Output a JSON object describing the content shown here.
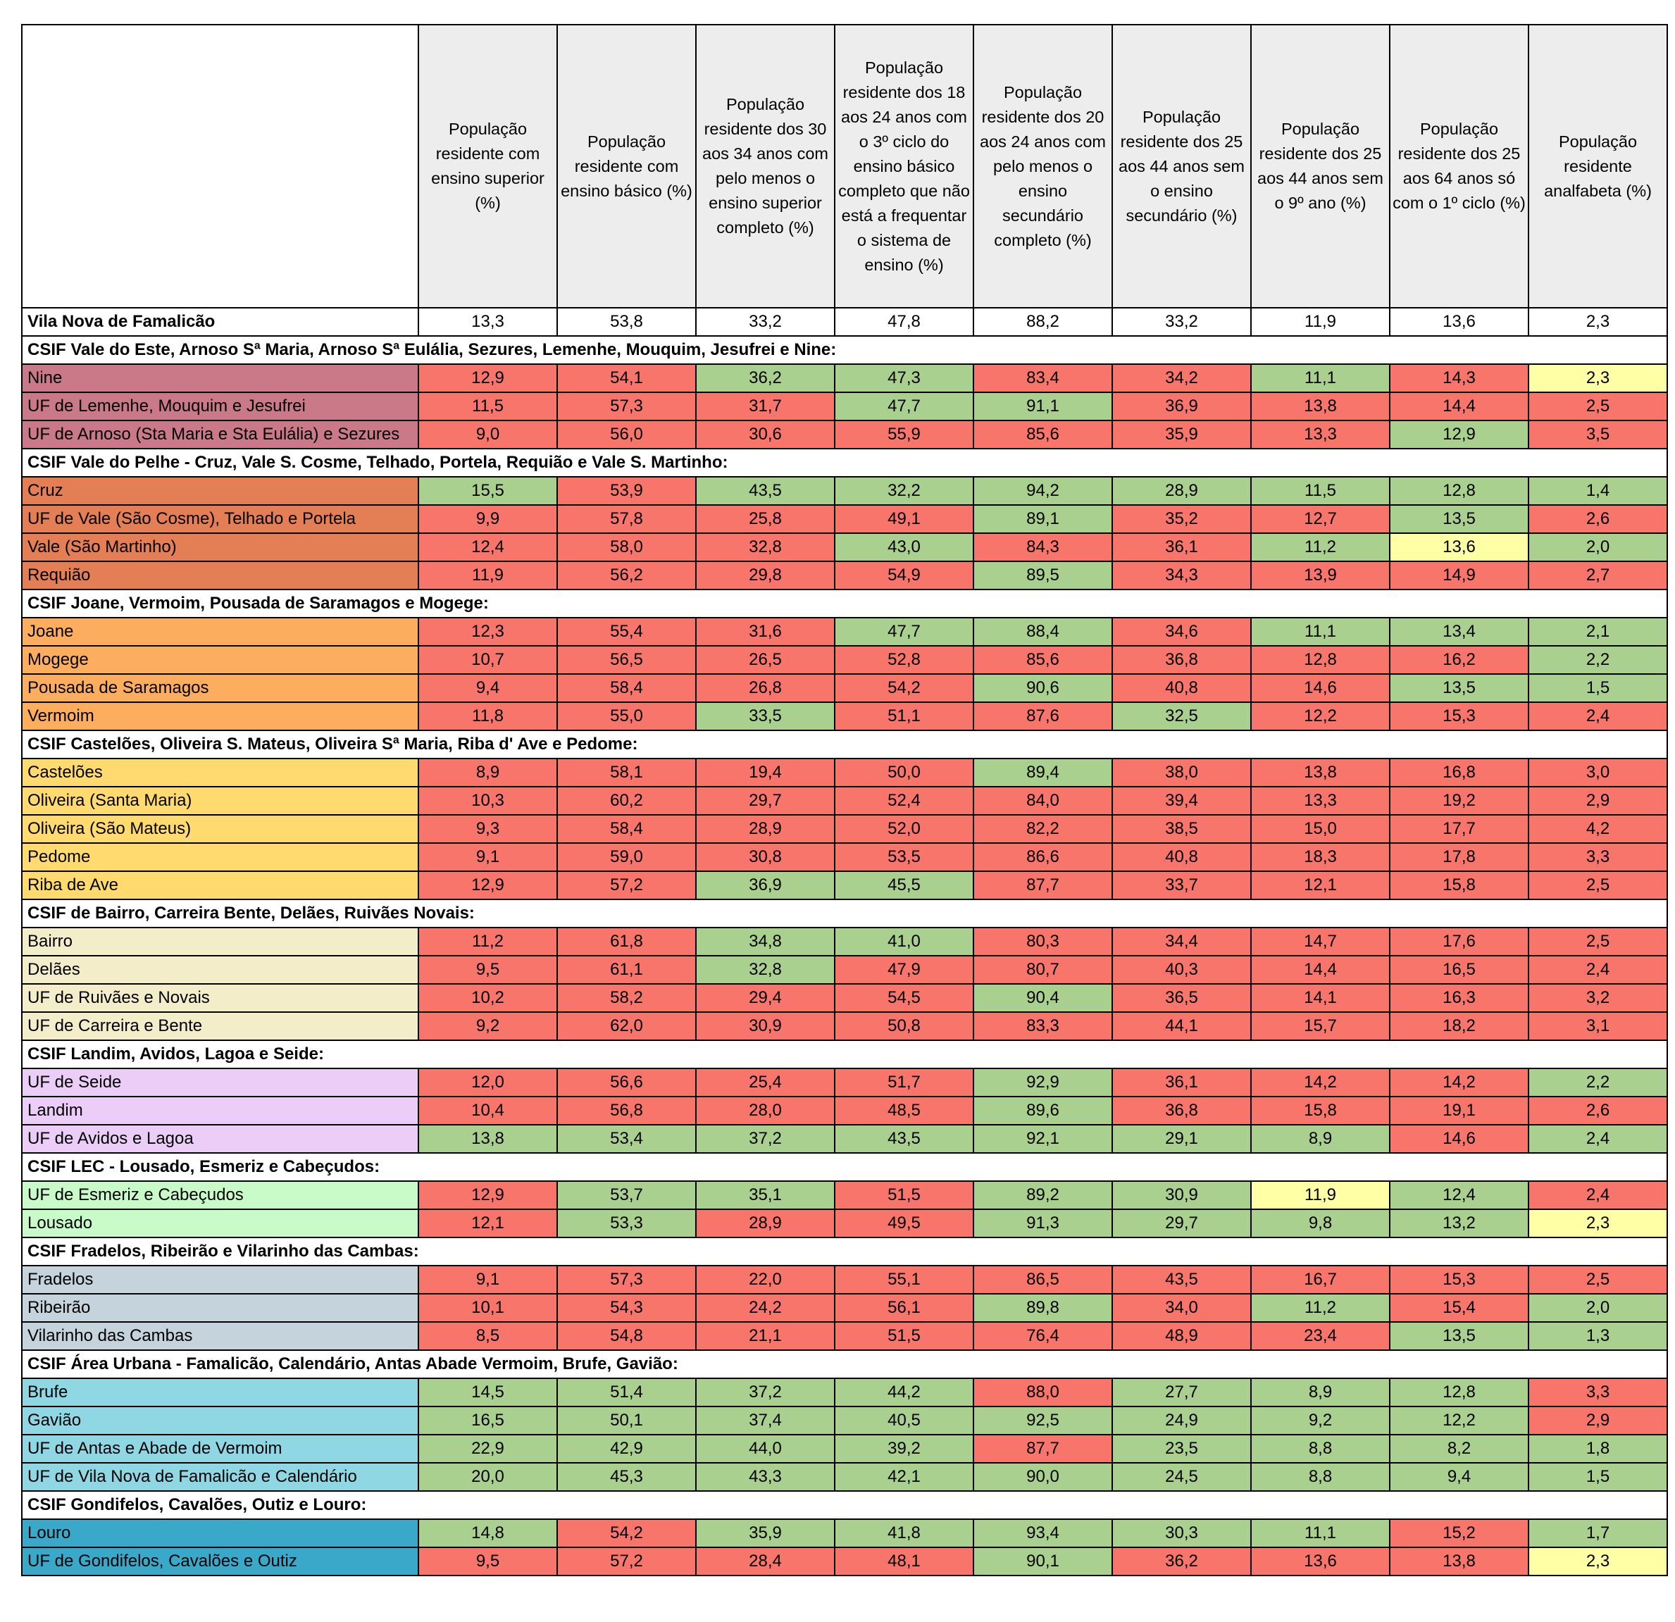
{
  "table": {
    "headers": [
      "População residente com ensino superior (%)",
      "População residente com ensino básico (%)",
      "População residente dos 30 aos 34 anos com pelo menos o ensino superior completo (%)",
      "População residente dos 18 aos 24 anos com o 3º ciclo do ensino básico completo que não está a frequentar o sistema de ensino (%)",
      "População residente dos 20 aos 24 anos com pelo menos o ensino secundário completo (%)",
      "População residente dos 25 aos 44 anos sem o ensino secundário (%)",
      "População residente dos 25 aos 44 anos sem o 9º ano (%)",
      "População residente dos 25 aos 64 anos só com o 1º ciclo (%)",
      "População residente analfabeta (%)"
    ],
    "summary": {
      "name": "Vila Nova de Famalicão",
      "values": [
        "13,3",
        "53,8",
        "33,2",
        "47,8",
        "88,2",
        "33,2",
        "11,9",
        "13,6",
        "2,3"
      ]
    },
    "groups": [
      {
        "title": "CSIF Vale do Este, Arnoso Sª Maria, Arnoso Sª Eulália, Sezures, Lemenhe, Mouquim, Jesufrei e Nine:",
        "color": "#c97988",
        "rows": [
          {
            "name": "Nine",
            "values": [
              "12,9",
              "54,1",
              "36,2",
              "47,3",
              "83,4",
              "34,2",
              "11,1",
              "14,3",
              "2,3"
            ],
            "status": [
              "r",
              "r",
              "g",
              "g",
              "r",
              "r",
              "g",
              "r",
              "y"
            ]
          },
          {
            "name": "UF de Lemenhe, Mouquim e Jesufrei",
            "values": [
              "11,5",
              "57,3",
              "31,7",
              "47,7",
              "91,1",
              "36,9",
              "13,8",
              "14,4",
              "2,5"
            ],
            "status": [
              "r",
              "r",
              "r",
              "g",
              "g",
              "r",
              "r",
              "r",
              "r"
            ]
          },
          {
            "name": "UF de Arnoso (Sta Maria e Sta Eulália) e Sezures",
            "values": [
              "9,0",
              "56,0",
              "30,6",
              "55,9",
              "85,6",
              "35,9",
              "13,3",
              "12,9",
              "3,5"
            ],
            "status": [
              "r",
              "r",
              "r",
              "r",
              "r",
              "r",
              "r",
              "g",
              "r"
            ]
          }
        ]
      },
      {
        "title": "CSIF Vale do Pelhe - Cruz, Vale S. Cosme, Telhado, Portela, Requião e Vale S. Martinho:",
        "color": "#e47e55",
        "rows": [
          {
            "name": "Cruz",
            "values": [
              "15,5",
              "53,9",
              "43,5",
              "32,2",
              "94,2",
              "28,9",
              "11,5",
              "12,8",
              "1,4"
            ],
            "status": [
              "g",
              "r",
              "g",
              "g",
              "g",
              "g",
              "g",
              "g",
              "g"
            ]
          },
          {
            "name": "UF de Vale (São Cosme), Telhado e Portela",
            "values": [
              "9,9",
              "57,8",
              "25,8",
              "49,1",
              "89,1",
              "35,2",
              "12,7",
              "13,5",
              "2,6"
            ],
            "status": [
              "r",
              "r",
              "r",
              "r",
              "g",
              "r",
              "r",
              "g",
              "r"
            ]
          },
          {
            "name": "Vale (São Martinho)",
            "values": [
              "12,4",
              "58,0",
              "32,8",
              "43,0",
              "84,3",
              "36,1",
              "11,2",
              "13,6",
              "2,0"
            ],
            "status": [
              "r",
              "r",
              "r",
              "g",
              "r",
              "r",
              "g",
              "y",
              "g"
            ]
          },
          {
            "name": "Requião",
            "values": [
              "11,9",
              "56,2",
              "29,8",
              "54,9",
              "89,5",
              "34,3",
              "13,9",
              "14,9",
              "2,7"
            ],
            "status": [
              "r",
              "r",
              "r",
              "r",
              "g",
              "r",
              "r",
              "r",
              "r"
            ]
          }
        ]
      },
      {
        "title": "CSIF Joane, Vermoim, Pousada de Saramagos e Mogege:",
        "color": "#fdad5e",
        "rows": [
          {
            "name": "Joane",
            "values": [
              "12,3",
              "55,4",
              "31,6",
              "47,7",
              "88,4",
              "34,6",
              "11,1",
              "13,4",
              "2,1"
            ],
            "status": [
              "r",
              "r",
              "r",
              "g",
              "g",
              "r",
              "g",
              "g",
              "g"
            ]
          },
          {
            "name": "Mogege",
            "values": [
              "10,7",
              "56,5",
              "26,5",
              "52,8",
              "85,6",
              "36,8",
              "12,8",
              "16,2",
              "2,2"
            ],
            "status": [
              "r",
              "r",
              "r",
              "r",
              "r",
              "r",
              "r",
              "r",
              "g"
            ]
          },
          {
            "name": "Pousada de Saramagos",
            "values": [
              "9,4",
              "58,4",
              "26,8",
              "54,2",
              "90,6",
              "40,8",
              "14,6",
              "13,5",
              "1,5"
            ],
            "status": [
              "r",
              "r",
              "r",
              "r",
              "g",
              "r",
              "r",
              "g",
              "g"
            ]
          },
          {
            "name": "Vermoim",
            "values": [
              "11,8",
              "55,0",
              "33,5",
              "51,1",
              "87,6",
              "32,5",
              "12,2",
              "15,3",
              "2,4"
            ],
            "status": [
              "r",
              "r",
              "g",
              "r",
              "r",
              "g",
              "r",
              "r",
              "r"
            ]
          }
        ]
      },
      {
        "title": "CSIF Castelões, Oliveira S. Mateus, Oliveira Sª Maria, Riba d' Ave e Pedome:",
        "color": "#ffdb6f",
        "rows": [
          {
            "name": "Castelões",
            "values": [
              "8,9",
              "58,1",
              "19,4",
              "50,0",
              "89,4",
              "38,0",
              "13,8",
              "16,8",
              "3,0"
            ],
            "status": [
              "r",
              "r",
              "r",
              "r",
              "g",
              "r",
              "r",
              "r",
              "r"
            ]
          },
          {
            "name": "Oliveira (Santa Maria)",
            "values": [
              "10,3",
              "60,2",
              "29,7",
              "52,4",
              "84,0",
              "39,4",
              "13,3",
              "19,2",
              "2,9"
            ],
            "status": [
              "r",
              "r",
              "r",
              "r",
              "r",
              "r",
              "r",
              "r",
              "r"
            ]
          },
          {
            "name": "Oliveira (São Mateus)",
            "values": [
              "9,3",
              "58,4",
              "28,9",
              "52,0",
              "82,2",
              "38,5",
              "15,0",
              "17,7",
              "4,2"
            ],
            "status": [
              "r",
              "r",
              "r",
              "r",
              "r",
              "r",
              "r",
              "r",
              "r"
            ]
          },
          {
            "name": "Pedome",
            "values": [
              "9,1",
              "59,0",
              "30,8",
              "53,5",
              "86,6",
              "40,8",
              "18,3",
              "17,8",
              "3,3"
            ],
            "status": [
              "r",
              "r",
              "r",
              "r",
              "r",
              "r",
              "r",
              "r",
              "r"
            ]
          },
          {
            "name": "Riba de Ave",
            "values": [
              "12,9",
              "57,2",
              "36,9",
              "45,5",
              "87,7",
              "33,7",
              "12,1",
              "15,8",
              "2,5"
            ],
            "status": [
              "r",
              "r",
              "g",
              "g",
              "r",
              "r",
              "r",
              "r",
              "r"
            ]
          }
        ]
      },
      {
        "title": "CSIF de Bairro, Carreira Bente, Delães, Ruivães Novais:",
        "color": "#f3edca",
        "rows": [
          {
            "name": "Bairro",
            "values": [
              "11,2",
              "61,8",
              "34,8",
              "41,0",
              "80,3",
              "34,4",
              "14,7",
              "17,6",
              "2,5"
            ],
            "status": [
              "r",
              "r",
              "g",
              "g",
              "r",
              "r",
              "r",
              "r",
              "r"
            ]
          },
          {
            "name": "Delães",
            "values": [
              "9,5",
              "61,1",
              "32,8",
              "47,9",
              "80,7",
              "40,3",
              "14,4",
              "16,5",
              "2,4"
            ],
            "status": [
              "r",
              "r",
              "g",
              "r",
              "r",
              "r",
              "r",
              "r",
              "r"
            ]
          },
          {
            "name": "UF de Ruivães e Novais",
            "values": [
              "10,2",
              "58,2",
              "29,4",
              "54,5",
              "90,4",
              "36,5",
              "14,1",
              "16,3",
              "3,2"
            ],
            "status": [
              "r",
              "r",
              "r",
              "r",
              "g",
              "r",
              "r",
              "r",
              "r"
            ]
          },
          {
            "name": "UF de Carreira e Bente",
            "values": [
              "9,2",
              "62,0",
              "30,9",
              "50,8",
              "83,3",
              "44,1",
              "15,7",
              "18,2",
              "3,1"
            ],
            "status": [
              "r",
              "r",
              "r",
              "r",
              "r",
              "r",
              "r",
              "r",
              "r"
            ]
          }
        ]
      },
      {
        "title": "CSIF Landim, Avidos, Lagoa e Seide:",
        "color": "#ebcdf7",
        "rows": [
          {
            "name": "UF de Seide",
            "values": [
              "12,0",
              "56,6",
              "25,4",
              "51,7",
              "92,9",
              "36,1",
              "14,2",
              "14,2",
              "2,2"
            ],
            "status": [
              "r",
              "r",
              "r",
              "r",
              "g",
              "r",
              "r",
              "r",
              "g"
            ]
          },
          {
            "name": "Landim",
            "values": [
              "10,4",
              "56,8",
              "28,0",
              "48,5",
              "89,6",
              "36,8",
              "15,8",
              "19,1",
              "2,6"
            ],
            "status": [
              "r",
              "r",
              "r",
              "r",
              "g",
              "r",
              "r",
              "r",
              "r"
            ]
          },
          {
            "name": "UF de Avidos e Lagoa",
            "values": [
              "13,8",
              "53,4",
              "37,2",
              "43,5",
              "92,1",
              "29,1",
              "8,9",
              "14,6",
              "2,4"
            ],
            "status": [
              "g",
              "g",
              "g",
              "g",
              "g",
              "g",
              "g",
              "r",
              "g"
            ]
          }
        ]
      },
      {
        "title": "CSIF LEC - Lousado, Esmeriz e Cabeçudos:",
        "color": "#c8fbc8",
        "rows": [
          {
            "name": "UF de Esmeriz e Cabeçudos",
            "values": [
              "12,9",
              "53,7",
              "35,1",
              "51,5",
              "89,2",
              "30,9",
              "11,9",
              "12,4",
              "2,4"
            ],
            "status": [
              "r",
              "g",
              "g",
              "r",
              "g",
              "g",
              "y",
              "g",
              "r"
            ]
          },
          {
            "name": "Lousado",
            "values": [
              "12,1",
              "53,3",
              "28,9",
              "49,5",
              "91,3",
              "29,7",
              "9,8",
              "13,2",
              "2,3"
            ],
            "status": [
              "r",
              "g",
              "r",
              "r",
              "g",
              "g",
              "g",
              "g",
              "y"
            ]
          }
        ]
      },
      {
        "title": "CSIF Fradelos, Ribeirão e Vilarinho das Cambas:",
        "color": "#c5d3dc",
        "rows": [
          {
            "name": "Fradelos",
            "values": [
              "9,1",
              "57,3",
              "22,0",
              "55,1",
              "86,5",
              "43,5",
              "16,7",
              "15,3",
              "2,5"
            ],
            "status": [
              "r",
              "r",
              "r",
              "r",
              "r",
              "r",
              "r",
              "r",
              "r"
            ]
          },
          {
            "name": "Ribeirão",
            "values": [
              "10,1",
              "54,3",
              "24,2",
              "56,1",
              "89,8",
              "34,0",
              "11,2",
              "15,4",
              "2,0"
            ],
            "status": [
              "r",
              "r",
              "r",
              "r",
              "g",
              "r",
              "g",
              "r",
              "g"
            ]
          },
          {
            "name": "Vilarinho das Cambas",
            "values": [
              "8,5",
              "54,8",
              "21,1",
              "51,5",
              "76,4",
              "48,9",
              "23,4",
              "13,5",
              "1,3"
            ],
            "status": [
              "r",
              "r",
              "r",
              "r",
              "r",
              "r",
              "r",
              "g",
              "g"
            ]
          }
        ]
      },
      {
        "title": "CSIF Área Urbana - Famalicão, Calendário, Antas Abade Vermoim, Brufe, Gavião:",
        "color": "#8fd8e3",
        "rows": [
          {
            "name": "Brufe",
            "values": [
              "14,5",
              "51,4",
              "37,2",
              "44,2",
              "88,0",
              "27,7",
              "8,9",
              "12,8",
              "3,3"
            ],
            "status": [
              "g",
              "g",
              "g",
              "g",
              "r",
              "g",
              "g",
              "g",
              "r"
            ]
          },
          {
            "name": "Gavião",
            "values": [
              "16,5",
              "50,1",
              "37,4",
              "40,5",
              "92,5",
              "24,9",
              "9,2",
              "12,2",
              "2,9"
            ],
            "status": [
              "g",
              "g",
              "g",
              "g",
              "g",
              "g",
              "g",
              "g",
              "r"
            ]
          },
          {
            "name": "UF de Antas e Abade de Vermoim",
            "values": [
              "22,9",
              "42,9",
              "44,0",
              "39,2",
              "87,7",
              "23,5",
              "8,8",
              "8,2",
              "1,8"
            ],
            "status": [
              "g",
              "g",
              "g",
              "g",
              "r",
              "g",
              "g",
              "g",
              "g"
            ]
          },
          {
            "name": "UF de Vila Nova de Famalicão e Calendário",
            "values": [
              "20,0",
              "45,3",
              "43,3",
              "42,1",
              "90,0",
              "24,5",
              "8,8",
              "9,4",
              "1,5"
            ],
            "status": [
              "g",
              "g",
              "g",
              "g",
              "g",
              "g",
              "g",
              "g",
              "g"
            ]
          }
        ]
      },
      {
        "title": "CSIF Gondifelos, Cavalões, Outiz e Louro:",
        "color": "#3aa8c9",
        "rows": [
          {
            "name": "Louro",
            "values": [
              "14,8",
              "54,2",
              "35,9",
              "41,8",
              "93,4",
              "30,3",
              "11,1",
              "15,2",
              "1,7"
            ],
            "status": [
              "g",
              "r",
              "g",
              "g",
              "g",
              "g",
              "g",
              "r",
              "g"
            ]
          },
          {
            "name": "UF de Gondifelos, Cavalões e Outiz",
            "values": [
              "9,5",
              "57,2",
              "28,4",
              "48,1",
              "90,1",
              "36,2",
              "13,6",
              "13,8",
              "2,3"
            ],
            "status": [
              "r",
              "r",
              "r",
              "r",
              "g",
              "r",
              "r",
              "r",
              "y"
            ]
          }
        ]
      }
    ]
  }
}
